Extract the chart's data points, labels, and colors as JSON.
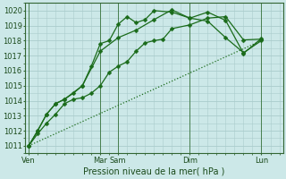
{
  "background_color": "#cce8e8",
  "grid_color": "#aacccc",
  "line_color": "#1a6b1a",
  "xlabel_text": "Pression niveau de la mer( hPa )",
  "ylim": [
    1010.5,
    1020.5
  ],
  "yticks": [
    1011,
    1012,
    1013,
    1014,
    1015,
    1016,
    1017,
    1018,
    1019,
    1020
  ],
  "xlim": [
    -0.2,
    14.2
  ],
  "xtick_positions": [
    0,
    4,
    5,
    9,
    13
  ],
  "xtick_labels": [
    "Ven",
    "Mar",
    "Sam",
    "Dim",
    "Lun"
  ],
  "vlines_x": [
    0,
    4,
    5,
    9,
    13
  ],
  "series": [
    {
      "x": [
        0,
        0.5,
        1,
        1.5,
        2,
        2.5,
        3,
        3.5,
        4,
        4.5,
        5,
        5.5,
        6,
        6.5,
        7,
        7.5,
        8,
        9,
        10,
        11,
        12,
        13
      ],
      "y": [
        1011.0,
        1011.8,
        1012.5,
        1013.1,
        1013.8,
        1014.1,
        1014.2,
        1014.5,
        1015.0,
        1015.9,
        1016.3,
        1016.6,
        1017.3,
        1017.85,
        1018.0,
        1018.1,
        1018.8,
        1019.05,
        1019.5,
        1019.6,
        1018.05,
        1018.1
      ],
      "marker": "D",
      "markersize": 2.5,
      "linewidth": 0.9,
      "linestyle": "-"
    },
    {
      "x": [
        0,
        13
      ],
      "y": [
        1011.0,
        1018.0
      ],
      "marker": null,
      "markersize": 0,
      "linewidth": 0.9,
      "linestyle": ":"
    },
    {
      "x": [
        0,
        0.5,
        1,
        1.5,
        2,
        2.5,
        3,
        3.5,
        4,
        4.5,
        5,
        5.5,
        6,
        6.5,
        7,
        8,
        9,
        10,
        11,
        12,
        13
      ],
      "y": [
        1011.0,
        1012.0,
        1013.1,
        1013.8,
        1014.1,
        1014.5,
        1015.0,
        1016.3,
        1017.8,
        1018.0,
        1019.1,
        1019.6,
        1019.2,
        1019.4,
        1020.0,
        1019.9,
        1019.5,
        1019.3,
        1018.2,
        1017.2,
        1018.0
      ],
      "marker": "D",
      "markersize": 2.5,
      "linewidth": 0.9,
      "linestyle": "-"
    },
    {
      "x": [
        0,
        0.5,
        1,
        1.5,
        2,
        3,
        4,
        5,
        6,
        7,
        8,
        9,
        10,
        11,
        12,
        13
      ],
      "y": [
        1011.0,
        1012.0,
        1013.1,
        1013.8,
        1014.1,
        1015.0,
        1017.3,
        1018.2,
        1018.7,
        1019.4,
        1020.05,
        1019.5,
        1019.9,
        1019.35,
        1017.15,
        1018.15
      ],
      "marker": "D",
      "markersize": 2.5,
      "linewidth": 0.9,
      "linestyle": "-"
    }
  ]
}
